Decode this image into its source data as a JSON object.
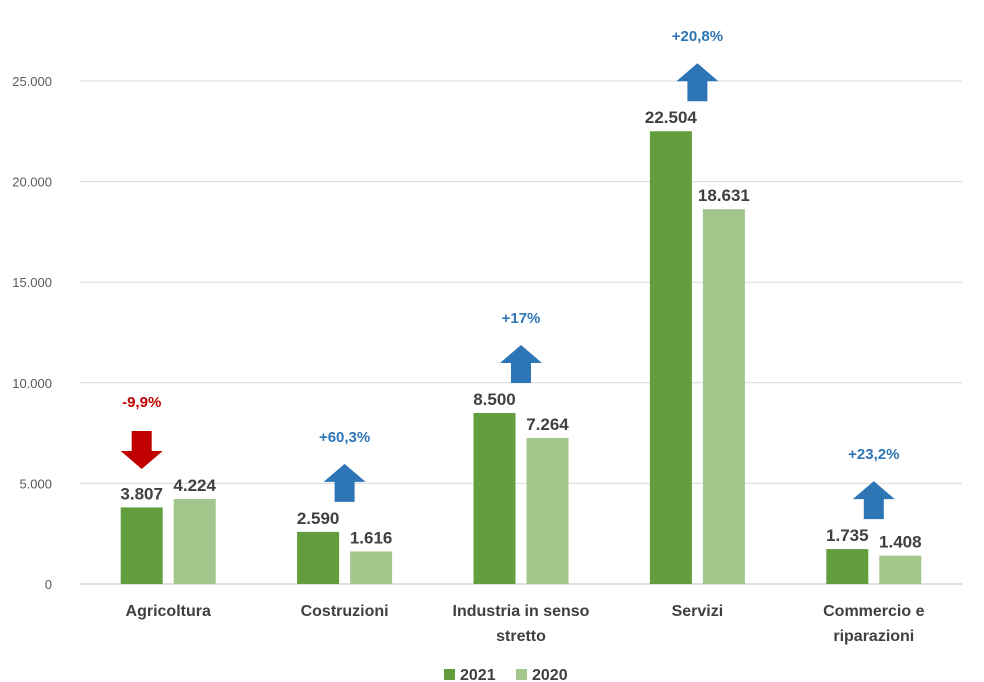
{
  "chart_data": {
    "type": "bar",
    "title": "",
    "xlabel": "",
    "ylabel": "",
    "ylim": [
      0,
      27500
    ],
    "yticks": [
      0,
      5000,
      10000,
      15000,
      20000,
      25000
    ],
    "ytick_labels": [
      "0",
      "5.000",
      "10.000",
      "15.000",
      "20.000",
      "25.000"
    ],
    "grid": true,
    "legend_position": "bottom",
    "categories": [
      [
        "Agricoltura"
      ],
      [
        "Costruzioni"
      ],
      [
        "Industria in senso",
        "stretto"
      ],
      [
        "Servizi"
      ],
      [
        "Commercio e",
        "riparazioni"
      ]
    ],
    "series": [
      {
        "name": "2021",
        "color": "#629e3e",
        "values": [
          3807,
          2590,
          8500,
          22504,
          1735
        ],
        "labels": [
          "3.807",
          "2.590",
          "8.500",
          "22.504",
          "1.735"
        ]
      },
      {
        "name": "2020",
        "color": "#a3c68d",
        "values": [
          4224,
          1616,
          7264,
          18631,
          1408
        ],
        "labels": [
          "4.224",
          "1.616",
          "7.264",
          "18.631",
          "1.408"
        ]
      }
    ],
    "annotations": [
      {
        "text": "-9,9%",
        "direction": "down",
        "color": "#c00000"
      },
      {
        "text": "+60,3%",
        "direction": "up",
        "color": "#2e75b6"
      },
      {
        "text": "+17%",
        "direction": "up",
        "color": "#2e75b6"
      },
      {
        "text": "+20,8%",
        "direction": "up",
        "color": "#2e75b6"
      },
      {
        "text": "+23,2%",
        "direction": "up",
        "color": "#2e75b6"
      }
    ]
  }
}
